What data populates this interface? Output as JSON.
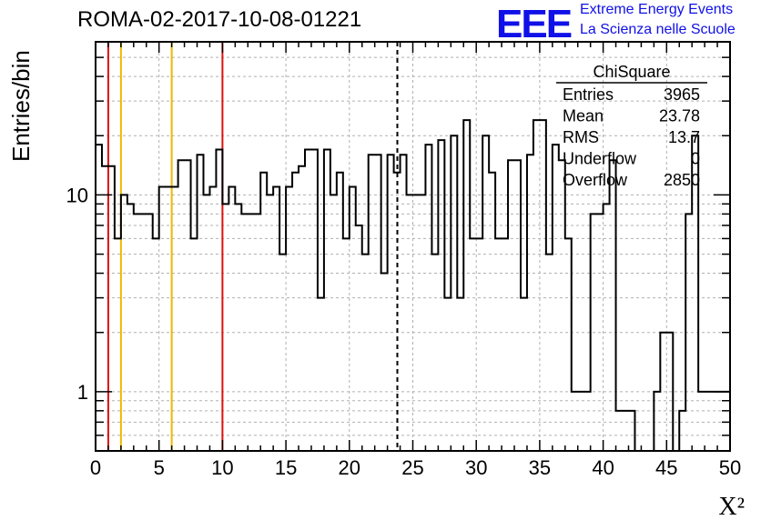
{
  "header": {
    "title": "ROMA-02-2017-10-08-01221",
    "logo_text": "EEE",
    "logo_line1": "Extreme Energy Events",
    "logo_line2": "La Scienza nelle Scuole"
  },
  "colors": {
    "accent": "#1010e8",
    "red_lines": "#dd1111",
    "orange_lines": "#f0b800",
    "frame": "#000000",
    "grid": "#b0b0b0"
  },
  "chart_data": {
    "type": "histogram",
    "xlabel": "X²",
    "ylabel": "Entries/bin",
    "xlim": [
      0,
      50
    ],
    "ylim": [
      0.5,
      60
    ],
    "y_scale": "log",
    "grid": true,
    "x_ticks": [
      "0",
      "5",
      "10",
      "15",
      "20",
      "25",
      "30",
      "35",
      "40",
      "45",
      "50"
    ],
    "y_ticks": [
      "1",
      "10"
    ],
    "bin_width": 0.5,
    "values": [
      18,
      14,
      14,
      6,
      10,
      9,
      8,
      8,
      8,
      6,
      11,
      11,
      11,
      15,
      15,
      6,
      16,
      10,
      11,
      17,
      9,
      11,
      9,
      8,
      8,
      8,
      13,
      10,
      11,
      5,
      11,
      13,
      14,
      17,
      17,
      3,
      17,
      10,
      13,
      6,
      11,
      7,
      5,
      16,
      16,
      4,
      16,
      13,
      16,
      10,
      10,
      10,
      18,
      5,
      19,
      3,
      20,
      3,
      24,
      6,
      6,
      20,
      13,
      6,
      6,
      15,
      15,
      3,
      16,
      24,
      24,
      5,
      18,
      15,
      6,
      1,
      1,
      1,
      8,
      8,
      9,
      15,
      0.8,
      0.8,
      0.8,
      0.5,
      0.5,
      0.5,
      1,
      2,
      2,
      0.5,
      0.8,
      8,
      20,
      1,
      1,
      1,
      1,
      1
    ],
    "series": [
      {
        "name": "ChiSquare"
      }
    ],
    "vertical_lines": [
      {
        "x": 1,
        "color": "red",
        "style": "solid"
      },
      {
        "x": 2,
        "color": "orange",
        "style": "solid"
      },
      {
        "x": 6,
        "color": "orange",
        "style": "solid"
      },
      {
        "x": 10,
        "color": "red",
        "style": "solid"
      },
      {
        "x": 23.78,
        "color": "black",
        "style": "dashed"
      }
    ],
    "stats_box": {
      "title": "ChiSquare",
      "rows": [
        {
          "label": "Entries",
          "value": "3965"
        },
        {
          "label": "Mean",
          "value": "23.78"
        },
        {
          "label": "RMS",
          "value": "13.7"
        },
        {
          "label": "Underflow",
          "value": "0"
        },
        {
          "label": "Overflow",
          "value": "2850"
        }
      ],
      "position": "top-right"
    }
  }
}
